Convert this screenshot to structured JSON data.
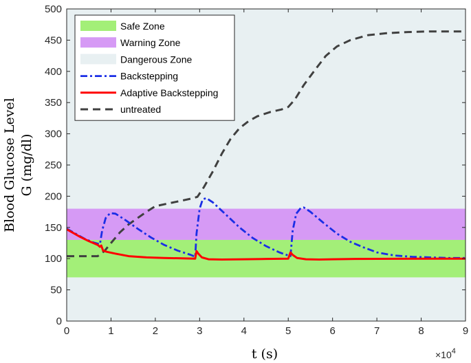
{
  "chart_data": {
    "type": "line",
    "xlabel": "t (s)",
    "ylabel_line1": "Blood Glucose Level",
    "ylabel_line2": "G (mg/dl)",
    "x_multiplier": "×10",
    "x_multiplier_exp": "4",
    "xlim": [
      0,
      9
    ],
    "ylim": [
      0,
      500
    ],
    "x_ticks": [
      0,
      1,
      2,
      3,
      4,
      5,
      6,
      7,
      8,
      9
    ],
    "y_ticks": [
      0,
      50,
      100,
      150,
      200,
      250,
      300,
      350,
      400,
      450,
      500
    ],
    "zones": [
      {
        "name": "Dangerous Zone",
        "y_range": [
          0,
          500
        ],
        "color": "#e8f0f2"
      },
      {
        "name": "Warning Zone",
        "y_range": [
          130,
          180
        ],
        "color": "#d69af5"
      },
      {
        "name": "Safe Zone",
        "y_range": [
          70,
          130
        ],
        "color": "#a3ef78"
      }
    ],
    "series": [
      {
        "name": "untreated",
        "color": "#404040",
        "dash": "dashed",
        "points": [
          [
            0,
            104
          ],
          [
            0.3,
            104
          ],
          [
            0.55,
            104
          ],
          [
            0.7,
            104
          ],
          [
            0.85,
            112
          ],
          [
            1.0,
            125
          ],
          [
            1.2,
            142
          ],
          [
            1.4,
            155
          ],
          [
            1.6,
            165
          ],
          [
            1.8,
            175
          ],
          [
            2.0,
            184
          ],
          [
            2.4,
            190
          ],
          [
            2.8,
            196
          ],
          [
            2.95,
            199
          ],
          [
            3.1,
            215
          ],
          [
            3.3,
            240
          ],
          [
            3.5,
            268
          ],
          [
            3.7,
            292
          ],
          [
            3.9,
            309
          ],
          [
            4.1,
            320
          ],
          [
            4.3,
            328
          ],
          [
            4.6,
            335
          ],
          [
            4.85,
            339
          ],
          [
            5.0,
            343
          ],
          [
            5.15,
            355
          ],
          [
            5.35,
            378
          ],
          [
            5.6,
            402
          ],
          [
            5.85,
            425
          ],
          [
            6.1,
            440
          ],
          [
            6.4,
            450
          ],
          [
            6.8,
            458
          ],
          [
            7.2,
            461
          ],
          [
            7.7,
            463
          ],
          [
            8.2,
            464
          ],
          [
            9.0,
            464
          ]
        ]
      },
      {
        "name": "Backstepping",
        "color": "#1a2ee6",
        "dash": "dashdot",
        "points": [
          [
            0,
            148
          ],
          [
            0.2,
            140
          ],
          [
            0.4,
            132
          ],
          [
            0.6,
            126
          ],
          [
            0.75,
            123
          ],
          [
            0.8,
            145
          ],
          [
            0.88,
            165
          ],
          [
            0.98,
            173
          ],
          [
            1.1,
            172
          ],
          [
            1.3,
            163
          ],
          [
            1.6,
            148
          ],
          [
            1.9,
            134
          ],
          [
            2.2,
            122
          ],
          [
            2.5,
            113
          ],
          [
            2.8,
            106
          ],
          [
            2.9,
            103
          ],
          [
            2.93,
            140
          ],
          [
            3.0,
            180
          ],
          [
            3.07,
            195
          ],
          [
            3.15,
            197
          ],
          [
            3.3,
            190
          ],
          [
            3.6,
            170
          ],
          [
            3.9,
            150
          ],
          [
            4.2,
            133
          ],
          [
            4.5,
            120
          ],
          [
            4.8,
            110
          ],
          [
            5.0,
            105
          ],
          [
            5.05,
            104
          ],
          [
            5.1,
            145
          ],
          [
            5.18,
            172
          ],
          [
            5.28,
            181
          ],
          [
            5.35,
            182
          ],
          [
            5.5,
            175
          ],
          [
            5.8,
            157
          ],
          [
            6.1,
            140
          ],
          [
            6.4,
            127
          ],
          [
            6.7,
            118
          ],
          [
            7.0,
            110
          ],
          [
            7.4,
            105
          ],
          [
            7.8,
            103
          ],
          [
            8.2,
            102
          ],
          [
            8.6,
            101
          ],
          [
            9.0,
            101
          ]
        ]
      },
      {
        "name": "Adaptive Backstepping",
        "color": "#ff0000",
        "dash": "solid",
        "points": [
          [
            0,
            147
          ],
          [
            0.15,
            141
          ],
          [
            0.3,
            135
          ],
          [
            0.5,
            128
          ],
          [
            0.7,
            122
          ],
          [
            0.75,
            119
          ],
          [
            0.78,
            121
          ],
          [
            0.82,
            113
          ],
          [
            0.9,
            111
          ],
          [
            1.1,
            108
          ],
          [
            1.4,
            104
          ],
          [
            1.8,
            102
          ],
          [
            2.2,
            101
          ],
          [
            2.6,
            100.5
          ],
          [
            2.9,
            100
          ],
          [
            2.93,
            112
          ],
          [
            2.97,
            108
          ],
          [
            3.05,
            102
          ],
          [
            3.2,
            99
          ],
          [
            3.5,
            98.5
          ],
          [
            4.0,
            99
          ],
          [
            4.5,
            99.5
          ],
          [
            5.0,
            100
          ],
          [
            5.05,
            110
          ],
          [
            5.1,
            106
          ],
          [
            5.2,
            101
          ],
          [
            5.4,
            99
          ],
          [
            5.7,
            98.5
          ],
          [
            6.0,
            99
          ],
          [
            6.5,
            99.5
          ],
          [
            7.5,
            99.8
          ],
          [
            9.0,
            100
          ]
        ]
      }
    ],
    "legend": {
      "placement": "top-left",
      "entries": [
        "Safe Zone",
        "Warning Zone",
        "Dangerous Zone",
        "Backstepping",
        "Adaptive Backstepping",
        "untreated"
      ]
    }
  }
}
